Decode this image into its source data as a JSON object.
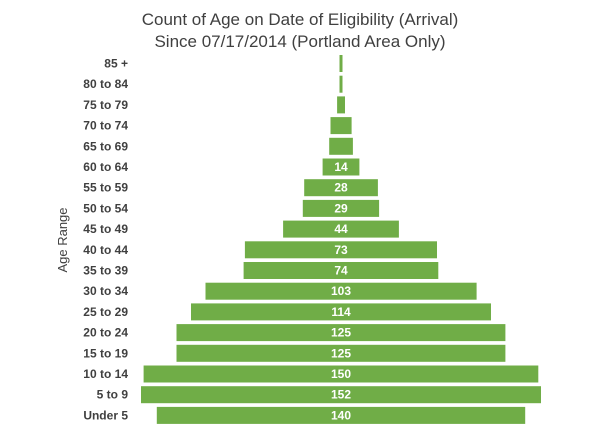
{
  "chart_data": {
    "type": "bar",
    "orientation": "horizontal",
    "layout": "centered-pyramid",
    "title": "Count of Age on Date of Eligibility (Arrival)",
    "subtitle": "Since 07/17/2014 (Portland Area Only)",
    "ylabel": "Age Range",
    "xlabel": "",
    "categories": [
      "85 +",
      "80 to 84",
      "75 to 79",
      "70 to 74",
      "65 to 69",
      "60 to 64",
      "55 to 59",
      "50 to 54",
      "45 to 49",
      "40 to 44",
      "35 to 39",
      "30 to 34",
      "25 to 29",
      "20 to 24",
      "15 to 19",
      "10 to 14",
      "5 to 9",
      "Under 5"
    ],
    "values": [
      1,
      1,
      3,
      8,
      9,
      14,
      28,
      29,
      44,
      73,
      74,
      103,
      114,
      125,
      125,
      150,
      152,
      140
    ],
    "data_labels": [
      "",
      "",
      "",
      "",
      "",
      "14",
      "28",
      "29",
      "44",
      "73",
      "74",
      "103",
      "114",
      "125",
      "125",
      "150",
      "152",
      "140"
    ],
    "bar_color": "#70ad47",
    "label_color": "#ffffff",
    "grid": false,
    "legend": "none"
  }
}
